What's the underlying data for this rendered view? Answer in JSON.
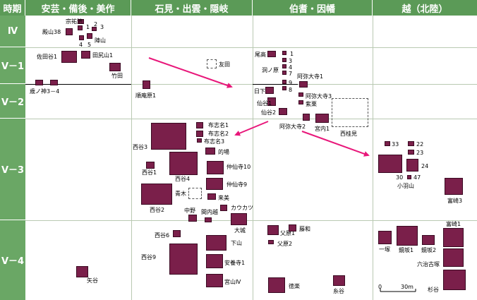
{
  "header": {
    "period": "時期",
    "regions": [
      "安芸・備後・美作",
      "石見・出雲・隠岐",
      "伯耆・因幡",
      "越（北陸）"
    ]
  },
  "periods": [
    "Ⅳ",
    "Ⅴ－1",
    "Ⅴ－2",
    "Ⅴ－3",
    "Ⅴ－4"
  ],
  "labels": {
    "l0": "宗祐池",
    "l1": "殿山38",
    "l2": "1",
    "l3": "2",
    "l4": "3",
    "l5": "4",
    "l6": "5",
    "l7": "陣山",
    "l8": "佐田谷1",
    "l9": "田尻山1",
    "l10": "竹田",
    "l11": "歳ノ神3－4",
    "l12": "順庵原1",
    "l13": "友田",
    "l14": "尾高",
    "l15": "1",
    "l16": "3",
    "l17": "4",
    "l18": "7",
    "l19": "洞ノ原",
    "l20": "阿弥大寺1",
    "l21": "9",
    "l22": "8",
    "l23": "日下",
    "l24": "阿弥大寺3",
    "l25": "仙谷1",
    "l26": "紫栗",
    "l27": "仙谷2",
    "l28": "阿弥大寺2",
    "l29": "宮内1",
    "l30": "西桂見",
    "l31": "布志名1",
    "l32": "布志名2",
    "l33": "布志名3",
    "l34": "西谷3",
    "l35": "的場",
    "l36": "仲仙寺10",
    "l37": "西谷1",
    "l38": "西谷4",
    "l39": "仲仙寺9",
    "l40": "青木",
    "l41": "来美",
    "l42": "西谷2",
    "l43": "中野",
    "l44": "間内越",
    "l45": "カウカツ",
    "l46": "33",
    "l47": "22",
    "l48": "23",
    "l49": "24",
    "l50": "30",
    "l51": "47",
    "l52": "小羽山",
    "l53": "富崎3",
    "l54": "大城",
    "l55": "西谷6",
    "l56": "下山",
    "l57": "西谷9",
    "l58": "安養寺1",
    "l59": "宮山Ⅳ",
    "l60": "父原1",
    "l61": "藤和",
    "l62": "父原2",
    "l63": "徳楽",
    "l64": "糸谷",
    "l65": "富崎1",
    "l66": "一塚",
    "l67": "鏡坂1",
    "l68": "鏡坂2",
    "l69": "六治古塚",
    "l70": "杉谷",
    "l71": "矢谷",
    "scale0": "0",
    "scale30": "30m"
  },
  "colors": {
    "header": "#5b9a57",
    "period": "#6aa765",
    "mound": "#7a1f4a",
    "arrow": "#e8177a"
  }
}
